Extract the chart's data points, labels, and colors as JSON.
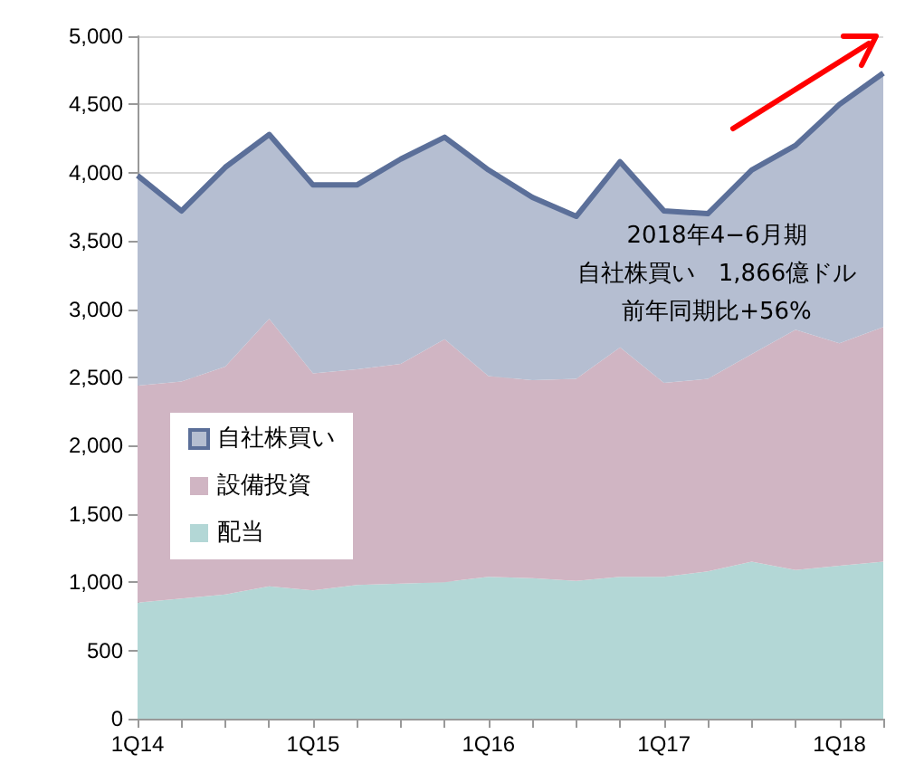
{
  "chart_data": {
    "type": "area",
    "stacked": true,
    "categories": [
      "1Q14",
      null,
      null,
      null,
      "1Q15",
      null,
      null,
      null,
      "1Q16",
      null,
      null,
      null,
      "1Q17",
      null,
      null,
      null,
      "1Q18",
      null
    ],
    "series": [
      {
        "name": "配当",
        "color": "#b3d7d6",
        "values": [
          850,
          880,
          910,
          970,
          940,
          980,
          990,
          1000,
          1040,
          1030,
          1010,
          1040,
          1040,
          1080,
          1150,
          1090,
          1120,
          1150
        ]
      },
      {
        "name": "設備投資",
        "color": "#d0b5c3",
        "values": [
          1590,
          1590,
          1670,
          1960,
          1590,
          1580,
          1610,
          1780,
          1470,
          1450,
          1480,
          1680,
          1420,
          1410,
          1520,
          1760,
          1630,
          1720
        ]
      },
      {
        "name": "自社株買い",
        "color": "#5b6f99",
        "line_style": "solid",
        "values": [
          1540,
          1250,
          1460,
          1350,
          1380,
          1350,
          1500,
          1480,
          1510,
          1340,
          1190,
          1360,
          1260,
          1210,
          1350,
          1350,
          1750,
          1860
        ]
      }
    ],
    "ylim": [
      0,
      5000
    ],
    "yticks": [
      {
        "value": 0,
        "label": "0"
      },
      {
        "value": 500,
        "label": "500"
      },
      {
        "value": 1000,
        "label": "1,000"
      },
      {
        "value": 1500,
        "label": "1,500"
      },
      {
        "value": 2000,
        "label": "2,000"
      },
      {
        "value": 2500,
        "label": "2,500"
      },
      {
        "value": 3000,
        "label": "3,000"
      },
      {
        "value": 3500,
        "label": "3,500"
      },
      {
        "value": 4000,
        "label": "4,000"
      },
      {
        "value": 4500,
        "label": "4,500"
      },
      {
        "value": 5000,
        "label": "5,000"
      }
    ],
    "grid": "y",
    "legend": "left",
    "annotations": [
      "2018年4−6月期",
      "自社株買い　1,866億ドル",
      "前年同期比+56%"
    ]
  }
}
